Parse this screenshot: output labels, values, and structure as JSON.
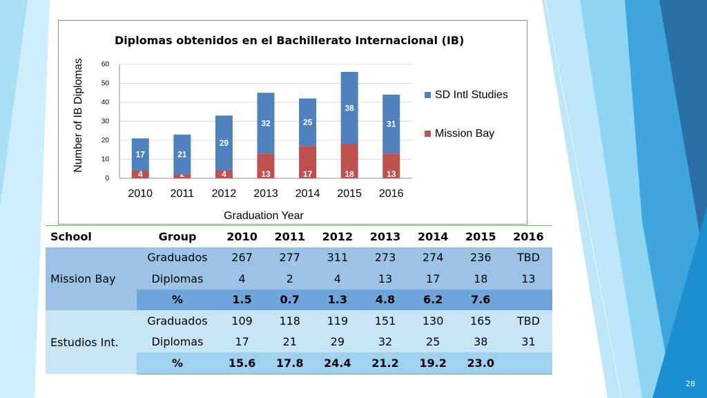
{
  "colors": {
    "series_sd": "#4f81bd",
    "series_mb": "#c0504d",
    "deco_light": "#8fd4f2",
    "deco_mid": "#3ea6dc",
    "deco_dark": "#2a6fa8"
  },
  "chart_data": {
    "type": "bar",
    "stacked": true,
    "title": "Diplomas obtenidos en el Bachillerato Internacional (IB)",
    "xlabel": "Graduation Year",
    "ylabel": "Number of IB Diplomas",
    "categories": [
      "2010",
      "2011",
      "2012",
      "2013",
      "2014",
      "2015",
      "2016"
    ],
    "ylim": [
      0,
      60
    ],
    "yticks": [
      0,
      10,
      20,
      30,
      40,
      50,
      60
    ],
    "grid": true,
    "legend_position": "right",
    "series": [
      {
        "name": "Mission Bay",
        "color": "#c0504d",
        "values": [
          4,
          2,
          4,
          13,
          17,
          18,
          13
        ]
      },
      {
        "name": "SD Intl Studies",
        "color": "#4f81bd",
        "values": [
          17,
          21,
          29,
          32,
          25,
          38,
          31
        ]
      }
    ],
    "legend_order": [
      "SD Intl Studies",
      "Mission Bay"
    ]
  },
  "table": {
    "headers": [
      "School",
      "Group",
      "2010",
      "2011",
      "2012",
      "2013",
      "2014",
      "2015",
      "2016"
    ],
    "groups": [
      {
        "school": "Mission Bay",
        "rows": [
          {
            "group": "Graduados",
            "values": [
              "267",
              "277",
              "311",
              "273",
              "274",
              "236",
              "TBD"
            ]
          },
          {
            "group": "Diplomas",
            "values": [
              "4",
              "2",
              "4",
              "13",
              "17",
              "18",
              "13"
            ]
          },
          {
            "group": "%",
            "values": [
              "1.5",
              "0.7",
              "1.3",
              "4.8",
              "6.2",
              "7.6",
              ""
            ]
          }
        ]
      },
      {
        "school": "Estudios Int.",
        "rows": [
          {
            "group": "Graduados",
            "values": [
              "109",
              "118",
              "119",
              "151",
              "130",
              "165",
              "TBD"
            ]
          },
          {
            "group": "Diplomas",
            "values": [
              "17",
              "21",
              "29",
              "32",
              "25",
              "38",
              "31"
            ]
          },
          {
            "group": "%",
            "values": [
              "15.6",
              "17.8",
              "24.4",
              "21.2",
              "19.2",
              "23.0",
              ""
            ]
          }
        ]
      }
    ]
  },
  "slide_number": "28"
}
